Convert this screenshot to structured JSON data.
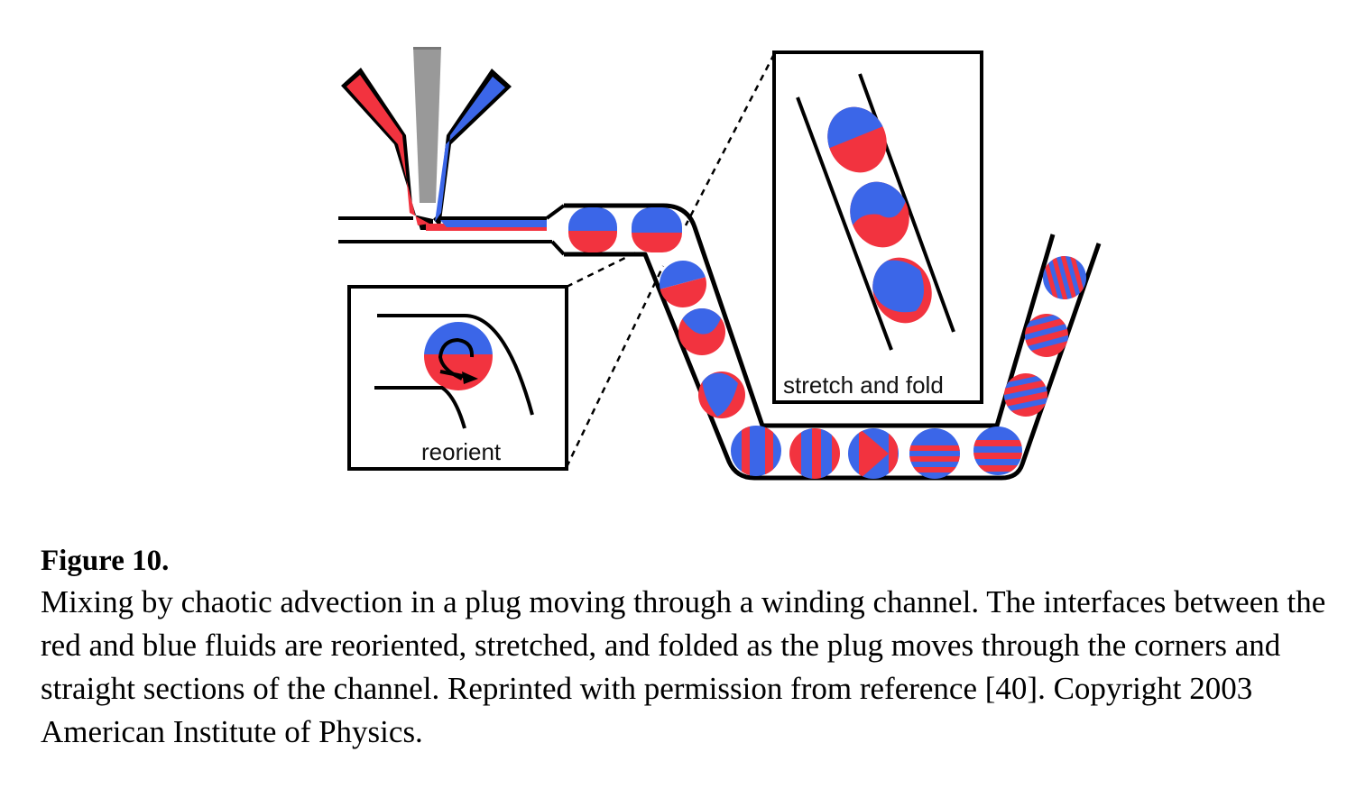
{
  "figure": {
    "labels": {
      "reorient": "reorient",
      "stretch_fold": "stretch and fold"
    },
    "colors": {
      "red_fluid": "#f2333f",
      "blue_fluid": "#3b66e8",
      "carrier_channel": "#999999",
      "wall": "#000000"
    }
  },
  "caption": {
    "title": "Figure 10.",
    "text": "Mixing by chaotic advection in a plug moving through a winding channel. The interfaces between the red and blue fluids are reoriented, stretched, and folded as the plug moves through the corners and straight sections of the channel. Reprinted with permission from reference [40]. Copyright 2003 American Institute of Physics."
  }
}
